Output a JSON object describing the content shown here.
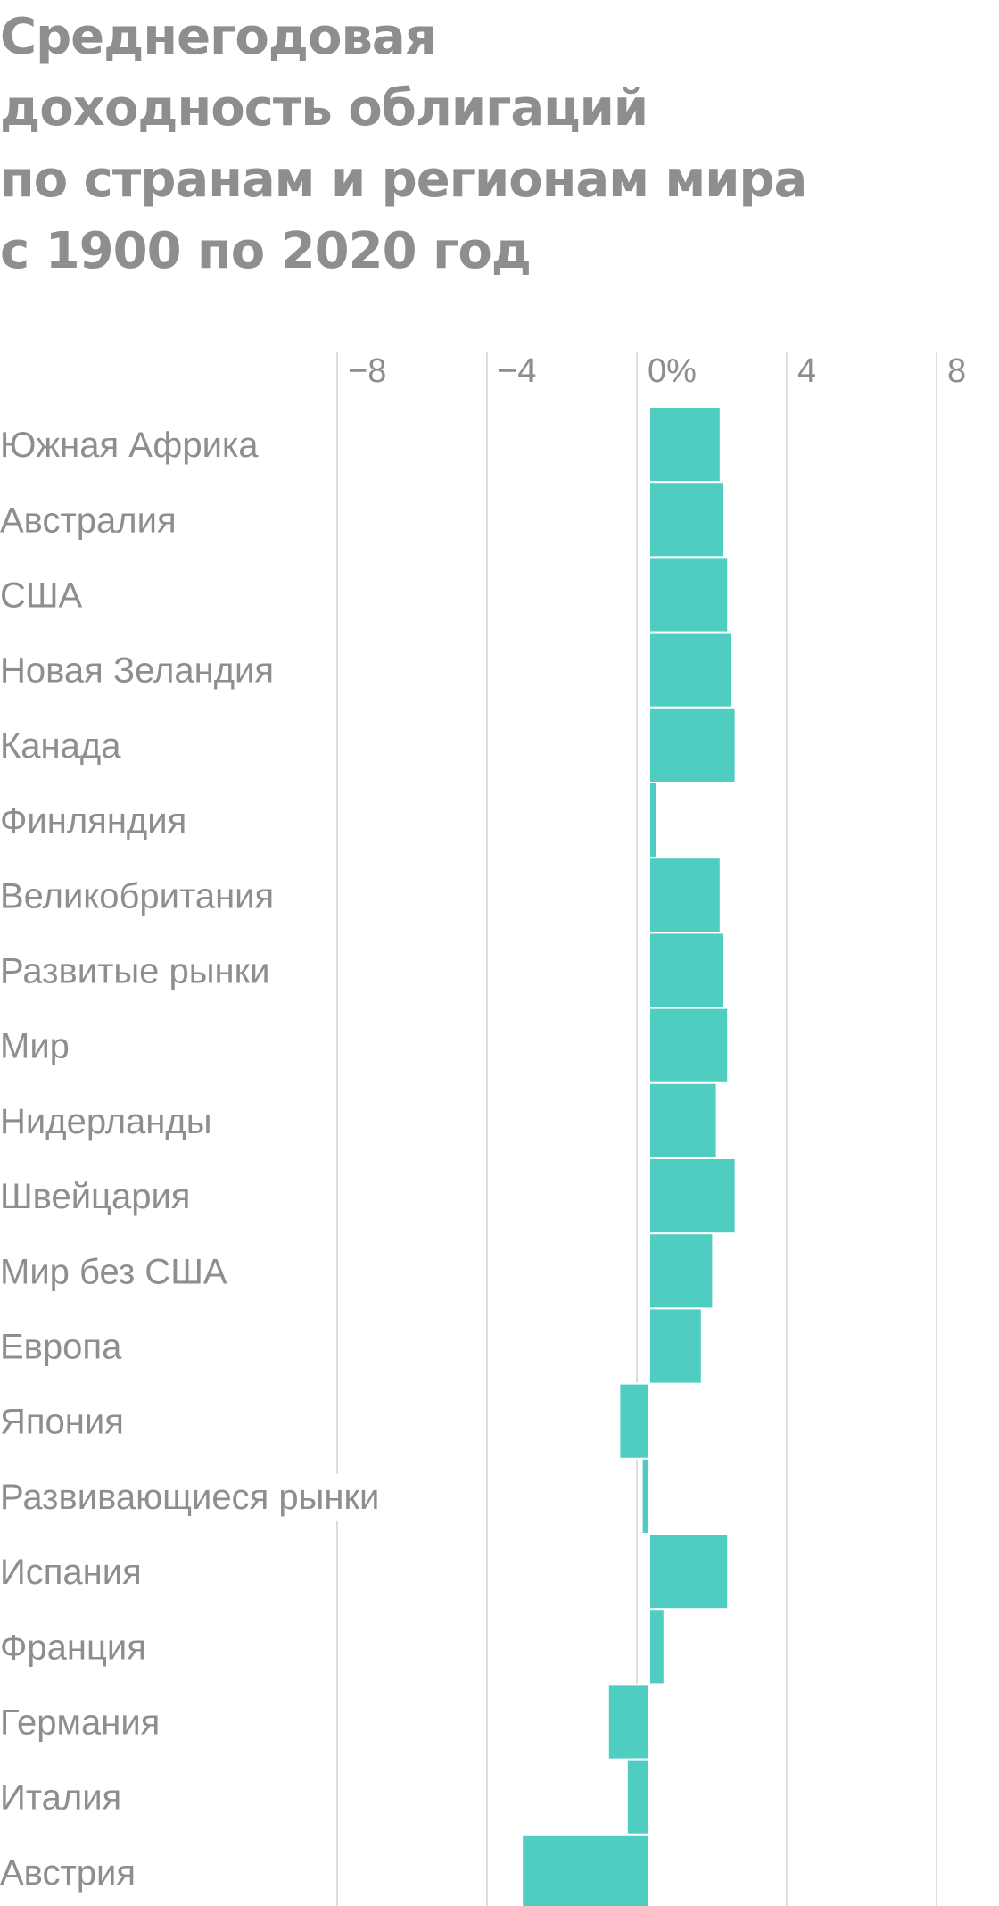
{
  "title_lines": [
    "Среднегодовая",
    "доходность облигаций",
    "по странам и регионам мира",
    "с 1900 по 2020 год"
  ],
  "colors": {
    "bar": "#4ecdc0",
    "text": "#8e8e8e",
    "grid": "#dcdcdc"
  },
  "chart_data": {
    "type": "bar",
    "orientation": "horizontal",
    "title": "Среднегодовая доходность облигаций по странам и регионам мира с 1900 по 2020 год",
    "xlim": [
      -12,
      8
    ],
    "ticks": [
      {
        "value": -8,
        "label": "−8"
      },
      {
        "value": -4,
        "label": "−4"
      },
      {
        "value": 0,
        "label": "0%"
      },
      {
        "value": 4,
        "label": "4"
      },
      {
        "value": 8,
        "label": "8"
      }
    ],
    "grid": true,
    "categories": [
      "Южная Африка",
      "Австралия",
      "США",
      "Новая Зеландия",
      "Канада",
      "Финляндия",
      "Великобритания",
      "Развитые рынки",
      "Мир",
      "Нидерланды",
      "Швейцария",
      "Мир без США",
      "Европа",
      "Япония",
      "Развивающиеся рынки",
      "Испания",
      "Франция",
      "Германия",
      "Италия",
      "Австрия"
    ],
    "values": [
      1.9,
      2.0,
      2.1,
      2.2,
      2.3,
      0.2,
      1.9,
      2.0,
      2.1,
      1.8,
      2.3,
      1.7,
      1.4,
      -0.8,
      -0.2,
      2.1,
      0.4,
      -1.1,
      -0.6,
      -3.4
    ]
  }
}
